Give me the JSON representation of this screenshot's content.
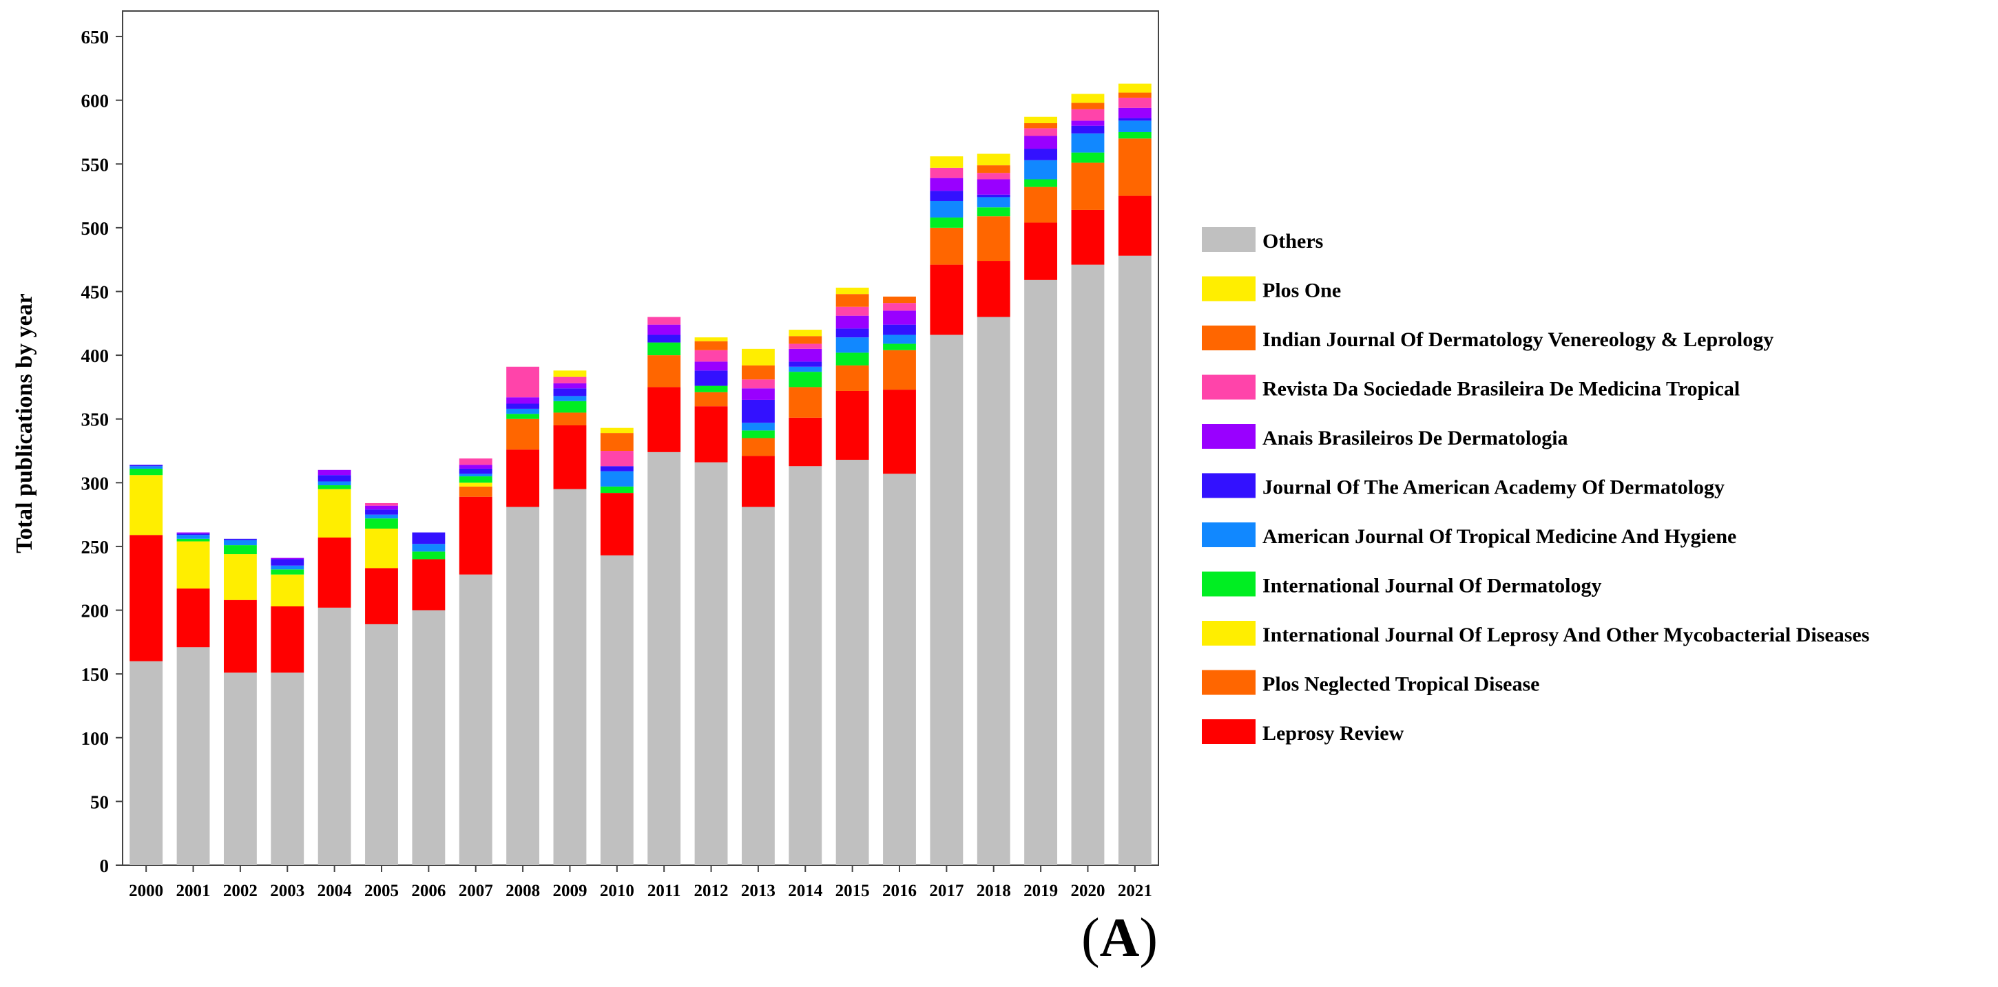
{
  "figure": {
    "panel_label_open": "(",
    "panel_label_letter": "A",
    "panel_label_close": ")"
  },
  "chart_data": {
    "type": "bar",
    "stacked": true,
    "title": "",
    "xlabel": "",
    "ylabel": "Total publications by year",
    "ylim": [
      0,
      670
    ],
    "yticks": [
      0,
      50,
      100,
      150,
      200,
      250,
      300,
      350,
      400,
      450,
      500,
      550,
      600,
      650
    ],
    "grid": false,
    "legend_position": "right",
    "categories": [
      "2000",
      "2001",
      "2002",
      "2003",
      "2004",
      "2005",
      "2006",
      "2007",
      "2008",
      "2009",
      "2010",
      "2011",
      "2012",
      "2013",
      "2014",
      "2015",
      "2016",
      "2017",
      "2018",
      "2019",
      "2020",
      "2021"
    ],
    "series": [
      {
        "name": "Others",
        "color": "#c0c0c0",
        "values": [
          160,
          171,
          151,
          151,
          202,
          189,
          200,
          228,
          281,
          295,
          243,
          324,
          316,
          281,
          313,
          318,
          307,
          416,
          430,
          459,
          471,
          478
        ]
      },
      {
        "name": "Leprosy Review",
        "color": "#ff0000",
        "values": [
          99,
          46,
          57,
          52,
          55,
          44,
          40,
          61,
          45,
          50,
          49,
          51,
          44,
          40,
          38,
          54,
          66,
          55,
          44,
          45,
          43,
          47
        ]
      },
      {
        "name": "Plos Neglected Tropical Disease",
        "color": "#ff6600",
        "values": [
          0,
          0,
          0,
          0,
          0,
          0,
          0,
          8,
          24,
          10,
          0,
          25,
          11,
          14,
          24,
          20,
          31,
          29,
          35,
          28,
          37,
          45
        ]
      },
      {
        "name": "International Journal Of Leprosy And Other Mycobacterial Diseases",
        "color": "#ffee00",
        "values": [
          47,
          37,
          36,
          25,
          38,
          31,
          0,
          3,
          0,
          0,
          0,
          0,
          0,
          0,
          0,
          0,
          0,
          0,
          0,
          0,
          0,
          0
        ]
      },
      {
        "name": "International Journal Of Dermatology",
        "color": "#00ee22",
        "values": [
          5,
          2,
          7,
          4,
          3,
          8,
          6,
          5,
          4,
          9,
          5,
          10,
          5,
          6,
          12,
          10,
          5,
          8,
          7,
          6,
          8,
          5
        ]
      },
      {
        "name": "American Journal Of Tropical Medicine And Hygiene",
        "color": "#1188ff",
        "values": [
          2,
          3,
          4,
          3,
          3,
          3,
          6,
          2,
          4,
          4,
          12,
          0,
          0,
          6,
          4,
          12,
          7,
          13,
          8,
          15,
          15,
          9
        ]
      },
      {
        "name": "Journal Of The American Academy Of Dermatology",
        "color": "#3311ff",
        "values": [
          1,
          1,
          1,
          5,
          5,
          4,
          9,
          4,
          4,
          6,
          4,
          6,
          12,
          18,
          4,
          7,
          8,
          8,
          2,
          9,
          6,
          2
        ]
      },
      {
        "name": "Anais Brasileiros De Dermatologia",
        "color": "#9900ff",
        "values": [
          0,
          1,
          0,
          1,
          4,
          3,
          0,
          3,
          5,
          4,
          0,
          8,
          7,
          9,
          10,
          10,
          11,
          10,
          12,
          10,
          4,
          8
        ]
      },
      {
        "name": "Revista Da Sociedade Brasileira De Medicina Tropical",
        "color": "#ff44aa",
        "values": [
          0,
          0,
          0,
          0,
          0,
          2,
          0,
          5,
          24,
          5,
          12,
          6,
          9,
          7,
          4,
          7,
          6,
          8,
          5,
          6,
          9,
          8
        ]
      },
      {
        "name": "Indian Journal Of Dermatology Venereology & Leprology",
        "color": "#ff6600",
        "values": [
          0,
          0,
          0,
          0,
          0,
          0,
          0,
          0,
          0,
          0,
          14,
          0,
          7,
          11,
          6,
          10,
          5,
          0,
          6,
          4,
          5,
          4
        ]
      },
      {
        "name": "Plos One",
        "color": "#ffee00",
        "values": [
          0,
          0,
          0,
          0,
          0,
          0,
          0,
          0,
          0,
          5,
          4,
          0,
          3,
          13,
          5,
          5,
          0,
          9,
          9,
          5,
          7,
          7
        ]
      }
    ]
  }
}
